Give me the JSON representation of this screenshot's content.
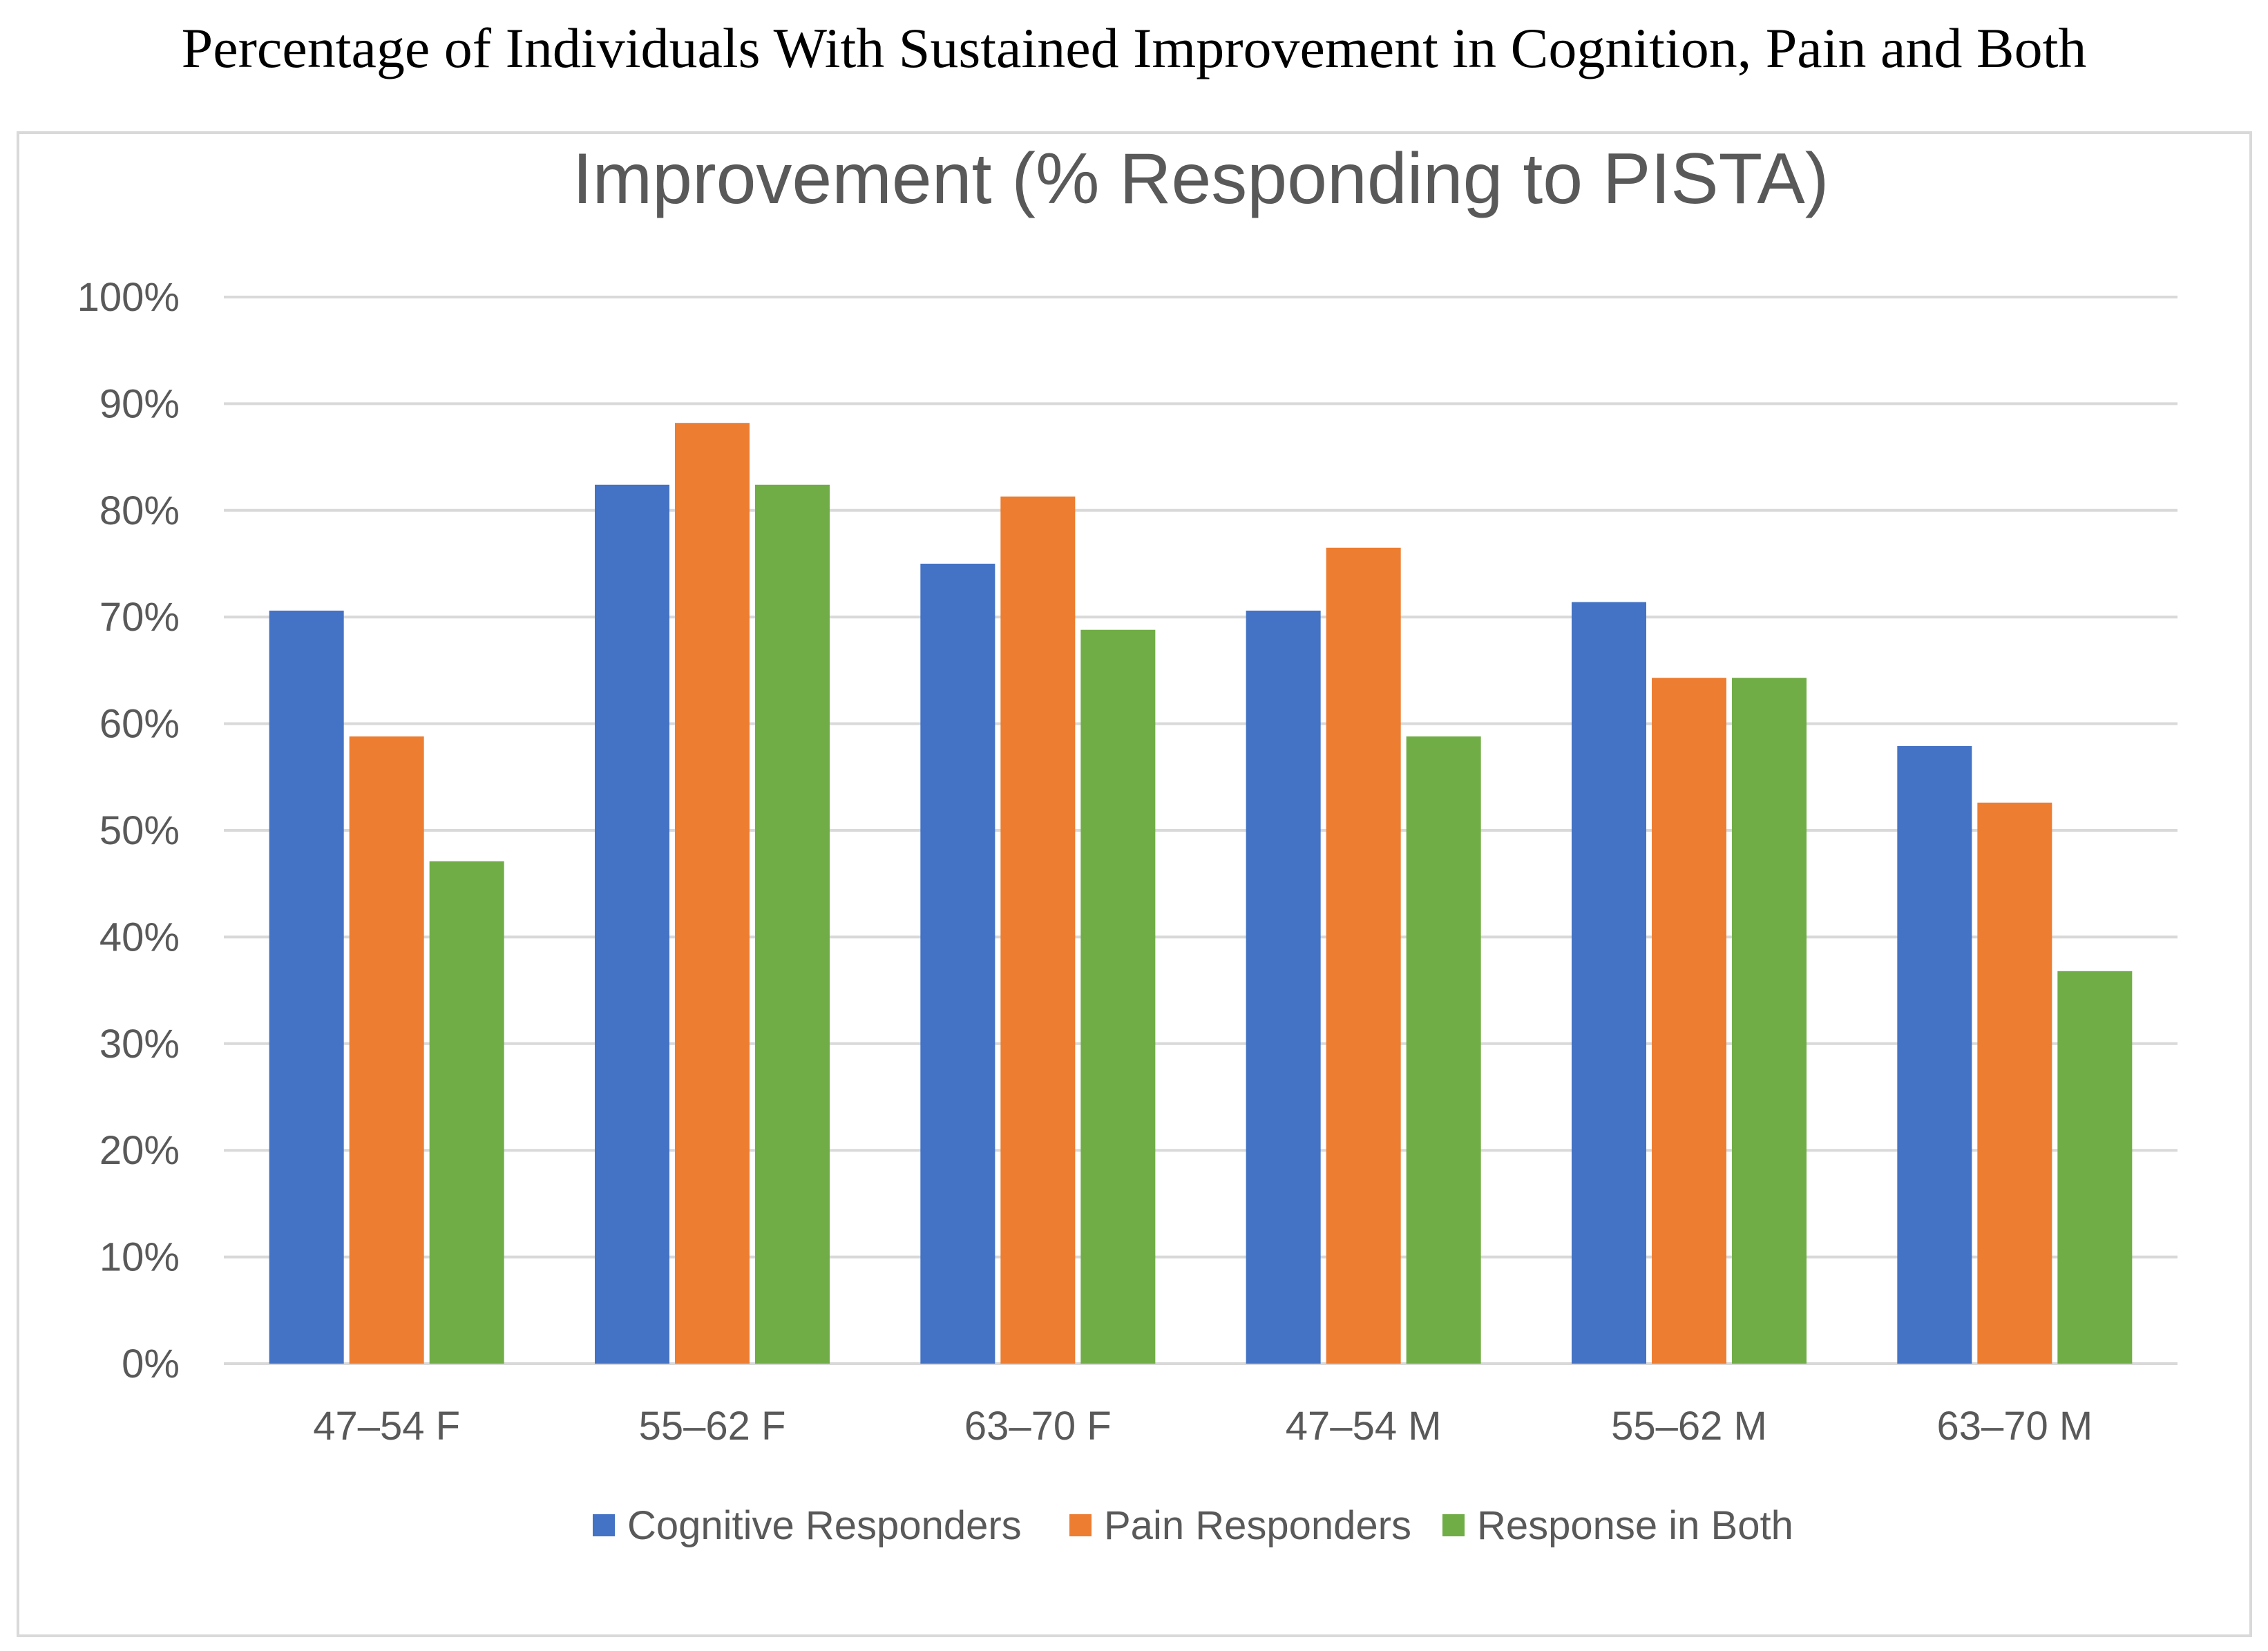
{
  "figure_heading": "Percentage of Individuals With Sustained Improvement in Cognition, Pain and Both",
  "chart_data": {
    "type": "bar",
    "title": "Improvement (% Responding to PISTA)",
    "xlabel": "",
    "ylabel": "",
    "categories": [
      "47–54 F",
      "55–62 F",
      "63–70 F",
      "47–54 M",
      "55–62 M",
      "63–70 M"
    ],
    "series": [
      {
        "name": "Cognitive Responders",
        "color": "#4472c4",
        "values": [
          70.6,
          82.4,
          75.0,
          70.6,
          71.4,
          57.9
        ]
      },
      {
        "name": "Pain Responders",
        "color": "#ed7d31",
        "values": [
          58.8,
          88.2,
          81.3,
          76.5,
          64.3,
          52.6
        ]
      },
      {
        "name": "Response in Both",
        "color": "#70ad47",
        "values": [
          47.1,
          82.4,
          68.8,
          58.8,
          64.3,
          36.8
        ]
      }
    ],
    "ylim": [
      0,
      100
    ],
    "yticks": [
      0,
      10,
      20,
      30,
      40,
      50,
      60,
      70,
      80,
      90,
      100
    ],
    "ytick_labels": [
      "0%",
      "10%",
      "20%",
      "30%",
      "40%",
      "50%",
      "60%",
      "70%",
      "80%",
      "90%",
      "100%"
    ],
    "grid": true,
    "legend_position": "bottom-center",
    "colors": {
      "gridline": "#d9d9d9",
      "axis_text": "#595959",
      "title_text": "#595959",
      "frame": "#d9d9d9"
    }
  }
}
